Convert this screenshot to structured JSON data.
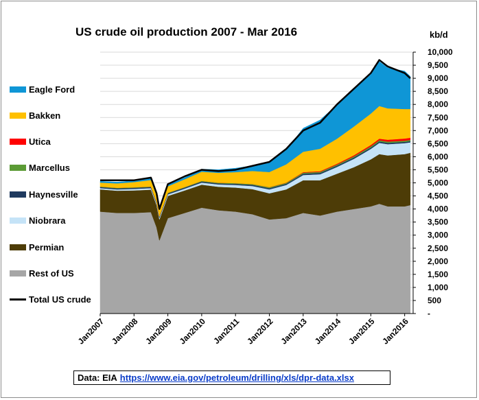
{
  "chart_data": {
    "type": "area",
    "title": "US crude oil production  2007 - Mar 2016",
    "ylabel": "kb/d",
    "xlabel": "",
    "ylim": [
      0,
      10000
    ],
    "yticks": [
      "-",
      "500",
      "1,000",
      "1,500",
      "2,000",
      "2,500",
      "3,000",
      "3,500",
      "4,000",
      "4,500",
      "5,000",
      "5,500",
      "6,000",
      "6,500",
      "7,000",
      "7,500",
      "8,000",
      "8,500",
      "9,000",
      "9,500",
      "10,000"
    ],
    "xticks": [
      "Jan2007",
      "Jan2008",
      "Jan2009",
      "Jan2010",
      "Jan2011",
      "Jan2012",
      "Jan2013",
      "Jan2014",
      "Jan2015",
      "Jan2016"
    ],
    "x": [
      "2007-01",
      "2007-07",
      "2008-01",
      "2008-07",
      "2008-09",
      "2008-10",
      "2009-01",
      "2009-07",
      "2010-01",
      "2010-07",
      "2011-01",
      "2011-07",
      "2012-01",
      "2012-07",
      "2013-01",
      "2013-07",
      "2014-01",
      "2014-07",
      "2015-01",
      "2015-04",
      "2015-07",
      "2016-01",
      "2016-03"
    ],
    "stacked": true,
    "series": [
      {
        "name": "Rest of US",
        "color": "#a6a6a6",
        "values": [
          3900,
          3850,
          3850,
          3880,
          3300,
          2800,
          3650,
          3850,
          4050,
          3950,
          3900,
          3800,
          3600,
          3650,
          3850,
          3750,
          3900,
          4000,
          4100,
          4200,
          4100,
          4100,
          4150
        ]
      },
      {
        "name": "Permian",
        "color": "#4d3c07",
        "values": [
          850,
          850,
          860,
          860,
          850,
          800,
          850,
          860,
          880,
          900,
          920,
          960,
          1000,
          1100,
          1250,
          1350,
          1450,
          1600,
          1800,
          1900,
          1950,
          2000,
          2000
        ]
      },
      {
        "name": "Niobrara",
        "color": "#c5e3f7",
        "values": [
          50,
          50,
          60,
          60,
          60,
          60,
          60,
          70,
          80,
          90,
          100,
          120,
          150,
          170,
          200,
          230,
          260,
          320,
          400,
          430,
          430,
          420,
          400
        ]
      },
      {
        "name": "Haynesville",
        "color": "#1f3a5f",
        "values": [
          40,
          40,
          40,
          40,
          40,
          40,
          40,
          40,
          40,
          40,
          40,
          45,
          45,
          45,
          50,
          50,
          50,
          50,
          50,
          50,
          50,
          45,
          45
        ]
      },
      {
        "name": "Marcellus",
        "color": "#5b9b35",
        "values": [
          20,
          20,
          20,
          20,
          20,
          20,
          20,
          20,
          25,
          25,
          30,
          30,
          35,
          35,
          40,
          40,
          40,
          45,
          50,
          50,
          50,
          50,
          50
        ]
      },
      {
        "name": "Utica",
        "color": "#ff0000",
        "values": [
          0,
          0,
          0,
          0,
          0,
          0,
          0,
          0,
          0,
          0,
          0,
          0,
          5,
          10,
          20,
          25,
          30,
          40,
          50,
          60,
          70,
          80,
          80
        ]
      },
      {
        "name": "Bakken",
        "color": "#ffc000",
        "values": [
          150,
          170,
          200,
          250,
          250,
          250,
          250,
          300,
          350,
          380,
          420,
          500,
          580,
          700,
          780,
          860,
          960,
          1100,
          1200,
          1250,
          1200,
          1130,
          1100
        ]
      },
      {
        "name": "Eagle Ford",
        "color": "#0f96d6",
        "values": [
          50,
          50,
          50,
          50,
          50,
          50,
          50,
          60,
          100,
          120,
          150,
          200,
          400,
          550,
          900,
          1100,
          1300,
          1450,
          1500,
          1700,
          1550,
          1450,
          1250
        ]
      }
    ],
    "total": {
      "name": "Total US crude",
      "color": "#000000",
      "values": [
        5100,
        5100,
        5100,
        5200,
        4600,
        4000,
        4950,
        5250,
        5500,
        5450,
        5500,
        5650,
        5800,
        6300,
        7000,
        7300,
        8000,
        8600,
        9200,
        9700,
        9450,
        9200,
        9000
      ]
    },
    "legend_position": "left",
    "grid": true
  },
  "legend": [
    {
      "label": "Eagle Ford",
      "color": "#0f96d6"
    },
    {
      "label": "Bakken",
      "color": "#ffc000"
    },
    {
      "label": "Utica",
      "color": "#ff0000"
    },
    {
      "label": "Marcellus",
      "color": "#5b9b35"
    },
    {
      "label": "Haynesville",
      "color": "#1f3a5f"
    },
    {
      "label": "Niobrara",
      "color": "#c5e3f7"
    },
    {
      "label": "Permian",
      "color": "#4d3c07"
    },
    {
      "label": "Rest of US",
      "color": "#a6a6a6"
    },
    {
      "label": "Total US crude",
      "color": "#000000"
    }
  ],
  "source": {
    "prefix": "Data: EIA",
    "link": "https://www.eia.gov/petroleum/drilling/xls/dpr-data.xlsx"
  }
}
